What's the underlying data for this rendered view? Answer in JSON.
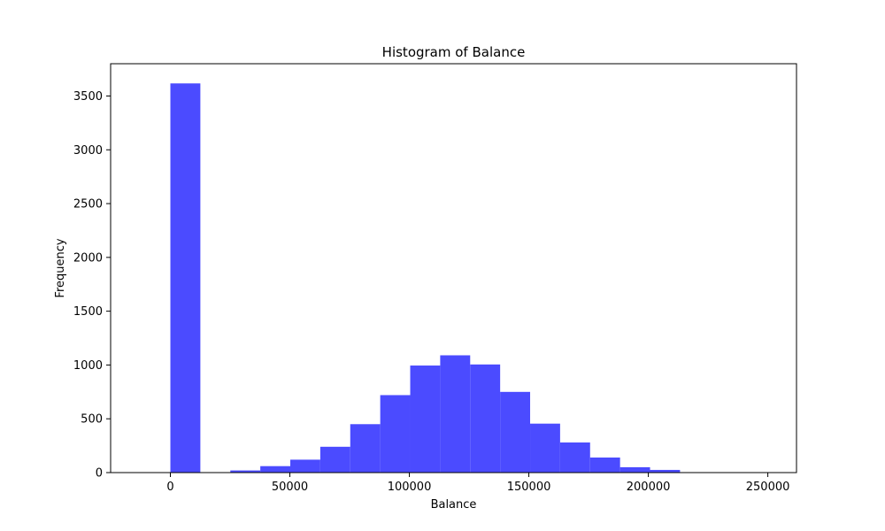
{
  "chart_data": {
    "type": "bar",
    "title": "Histogram of Balance",
    "xlabel": "Balance",
    "ylabel": "Frequency",
    "bar_color": "#4b4bff",
    "xlim": [
      -25000,
      262000
    ],
    "ylim": [
      0,
      3800
    ],
    "x_ticks": [
      0,
      50000,
      100000,
      150000,
      200000,
      250000
    ],
    "y_ticks": [
      0,
      500,
      1000,
      1500,
      2000,
      2500,
      3000,
      3500
    ],
    "bins": [
      {
        "start": 0,
        "end": 12545,
        "count": 3617
      },
      {
        "start": 12545,
        "end": 25090,
        "count": 0
      },
      {
        "start": 25090,
        "end": 37635,
        "count": 20
      },
      {
        "start": 37635,
        "end": 50180,
        "count": 60
      },
      {
        "start": 50180,
        "end": 62725,
        "count": 120
      },
      {
        "start": 62725,
        "end": 75270,
        "count": 240
      },
      {
        "start": 75270,
        "end": 87815,
        "count": 450
      },
      {
        "start": 87815,
        "end": 100360,
        "count": 720
      },
      {
        "start": 100360,
        "end": 112905,
        "count": 995
      },
      {
        "start": 112905,
        "end": 125450,
        "count": 1090
      },
      {
        "start": 125450,
        "end": 137995,
        "count": 1005
      },
      {
        "start": 137995,
        "end": 150540,
        "count": 750
      },
      {
        "start": 150540,
        "end": 163085,
        "count": 455
      },
      {
        "start": 163085,
        "end": 175630,
        "count": 280
      },
      {
        "start": 175630,
        "end": 188175,
        "count": 140
      },
      {
        "start": 188175,
        "end": 200720,
        "count": 50
      },
      {
        "start": 200720,
        "end": 213265,
        "count": 25
      },
      {
        "start": 213265,
        "end": 225810,
        "count": 0
      },
      {
        "start": 225810,
        "end": 238355,
        "count": 0
      },
      {
        "start": 238355,
        "end": 250900,
        "count": 2
      }
    ]
  }
}
